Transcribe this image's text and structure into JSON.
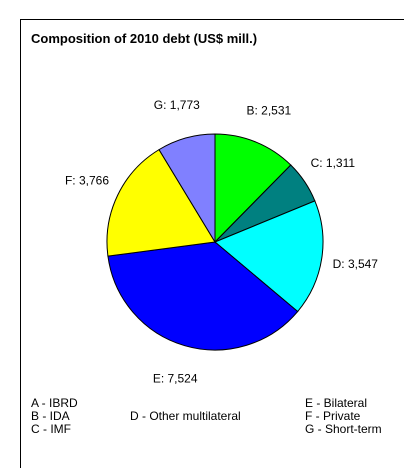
{
  "chart_data": {
    "type": "pie",
    "title": "Composition of 2010 debt (US$ mill.)",
    "slices": [
      {
        "key": "A",
        "value": 0,
        "color": "#000080"
      },
      {
        "key": "B",
        "value": 2531,
        "label": "B: 2,531",
        "color": "#00ff00"
      },
      {
        "key": "C",
        "value": 1311,
        "label": "C: 1,311",
        "color": "#008080"
      },
      {
        "key": "D",
        "value": 3547,
        "label": "D: 3,547",
        "color": "#00ffff"
      },
      {
        "key": "E",
        "value": 7524,
        "label": "E: 7,524",
        "color": "#0000ff"
      },
      {
        "key": "F",
        "value": 3766,
        "label": "F: 3,766",
        "color": "#ffff00"
      },
      {
        "key": "G",
        "value": 1773,
        "label": "G: 1,773",
        "color": "#8080ff"
      }
    ],
    "legend": {
      "a": "A - IBRD",
      "b": "B - IDA",
      "c": "C - IMF",
      "d": "D - Other multilateral",
      "e": "E - Bilateral",
      "f": "F - Private",
      "g": "G - Short-term"
    }
  }
}
